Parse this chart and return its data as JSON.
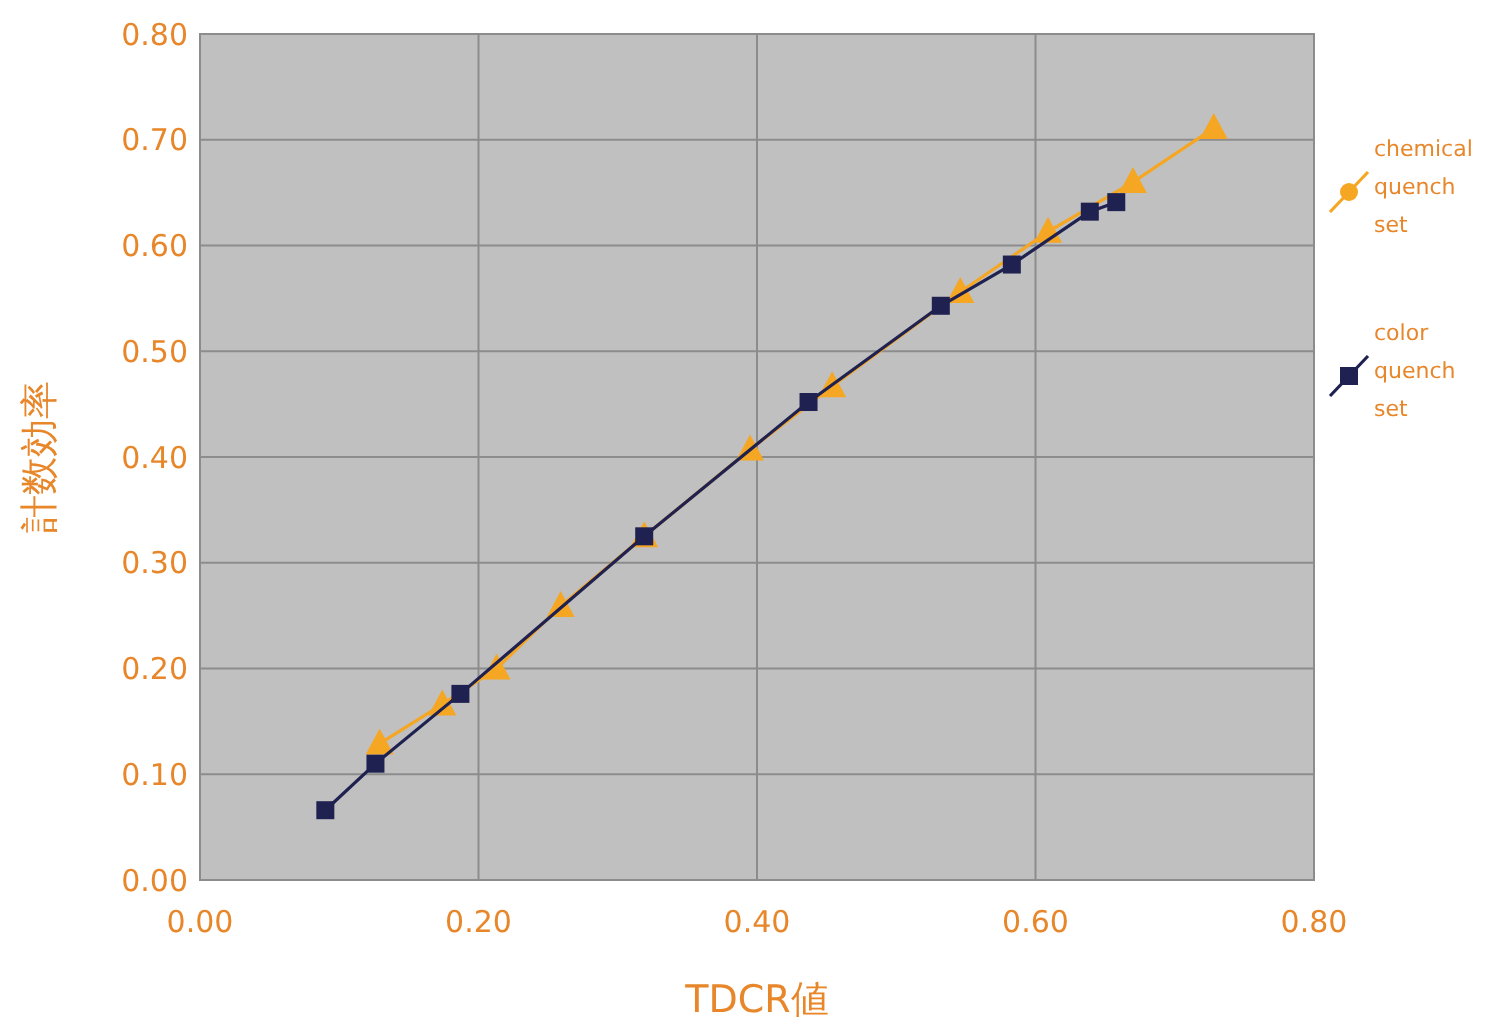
{
  "chart_data": {
    "type": "line",
    "xlabel": "TDCR値",
    "ylabel": "計数効率",
    "xlim": [
      0,
      0.8
    ],
    "ylim": [
      0,
      0.8
    ],
    "xticks": [
      {
        "value": 0,
        "label": "0.00"
      },
      {
        "value": 0.2,
        "label": "0.20"
      },
      {
        "value": 0.4,
        "label": "0.40"
      },
      {
        "value": 0.6,
        "label": "0.60"
      },
      {
        "value": 0.8,
        "label": "0.80"
      }
    ],
    "yticks": [
      {
        "value": 0,
        "label": "0.00"
      },
      {
        "value": 0.1,
        "label": "0.10"
      },
      {
        "value": 0.2,
        "label": "0.20"
      },
      {
        "value": 0.3,
        "label": "0.30"
      },
      {
        "value": 0.4,
        "label": "0.40"
      },
      {
        "value": 0.5,
        "label": "0.50"
      },
      {
        "value": 0.6,
        "label": "0.60"
      },
      {
        "value": 0.7,
        "label": "0.70"
      },
      {
        "value": 0.8,
        "label": "0.80"
      }
    ],
    "grid": true,
    "legend": "right",
    "series": [
      {
        "name": "chemical quench set",
        "color": "#f5a623",
        "marker": "triangle",
        "x": [
          0.129,
          0.174,
          0.213,
          0.259,
          0.319,
          0.395,
          0.454,
          0.546,
          0.609,
          0.67,
          0.728
        ],
        "values": [
          0.129,
          0.166,
          0.2,
          0.259,
          0.325,
          0.407,
          0.467,
          0.556,
          0.613,
          0.66,
          0.711
        ]
      },
      {
        "name": "color quench set",
        "color": "#1f2150",
        "marker": "square",
        "x": [
          0.09,
          0.126,
          0.187,
          0.319,
          0.437,
          0.532,
          0.583,
          0.639,
          0.658
        ],
        "values": [
          0.066,
          0.11,
          0.176,
          0.325,
          0.452,
          0.543,
          0.582,
          0.632,
          0.641
        ]
      }
    ]
  }
}
